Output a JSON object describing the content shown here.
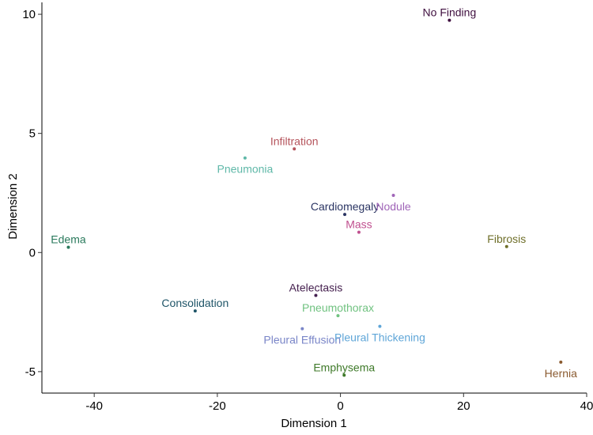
{
  "chart_data": {
    "type": "scatter",
    "title": "",
    "xlabel": "Dimension 1",
    "ylabel": "Dimension 2",
    "xlim": [
      -48.5,
      40
    ],
    "ylim": [
      -5.9,
      10.5
    ],
    "xticks": [
      -40,
      -20,
      0,
      20,
      40
    ],
    "yticks": [
      -5,
      0,
      5,
      10
    ],
    "grid": false,
    "legend": "none",
    "points": [
      {
        "label": "No Finding",
        "x": 17.7,
        "y": 9.75,
        "color": "#3f0f3f",
        "label_pos": "above"
      },
      {
        "label": "Infiltration",
        "x": -7.5,
        "y": 4.35,
        "color": "#b5545c",
        "label_pos": "above"
      },
      {
        "label": "Pneumonia",
        "x": -15.5,
        "y": 3.97,
        "color": "#5fb8a8",
        "label_pos": "below"
      },
      {
        "label": "Cardiomegaly",
        "x": 0.7,
        "y": 1.6,
        "color": "#2b3563",
        "label_pos": "above"
      },
      {
        "label": "Nodule",
        "x": 8.6,
        "y": 2.4,
        "color": "#a065b8",
        "label_pos": "below"
      },
      {
        "label": "Mass",
        "x": 3.0,
        "y": 0.85,
        "color": "#c0508f",
        "label_pos": "above"
      },
      {
        "label": "Edema",
        "x": -44.2,
        "y": 0.22,
        "color": "#2a7a5c",
        "label_pos": "above"
      },
      {
        "label": "Fibrosis",
        "x": 27.0,
        "y": 0.25,
        "color": "#6f6f2a",
        "label_pos": "above"
      },
      {
        "label": "Atelectasis",
        "x": -4.0,
        "y": -1.8,
        "color": "#45204f",
        "label_pos": "above"
      },
      {
        "label": "Consolidation",
        "x": -23.6,
        "y": -2.45,
        "color": "#1f5568",
        "label_pos": "above"
      },
      {
        "label": "Pneumothorax",
        "x": -0.4,
        "y": -2.65,
        "color": "#70c280",
        "label_pos": "above"
      },
      {
        "label": "Pleural Effusion",
        "x": -6.2,
        "y": -3.2,
        "color": "#7a86c8",
        "label_pos": "below"
      },
      {
        "label": "Pleural Thickening",
        "x": 6.4,
        "y": -3.1,
        "color": "#5fa6d8",
        "label_pos": "below"
      },
      {
        "label": "Emphysema",
        "x": 0.6,
        "y": -5.15,
        "color": "#3f7a2a",
        "label_pos": "above"
      },
      {
        "label": "Hernia",
        "x": 35.8,
        "y": -4.6,
        "color": "#8a5a2f",
        "label_pos": "below"
      }
    ]
  }
}
